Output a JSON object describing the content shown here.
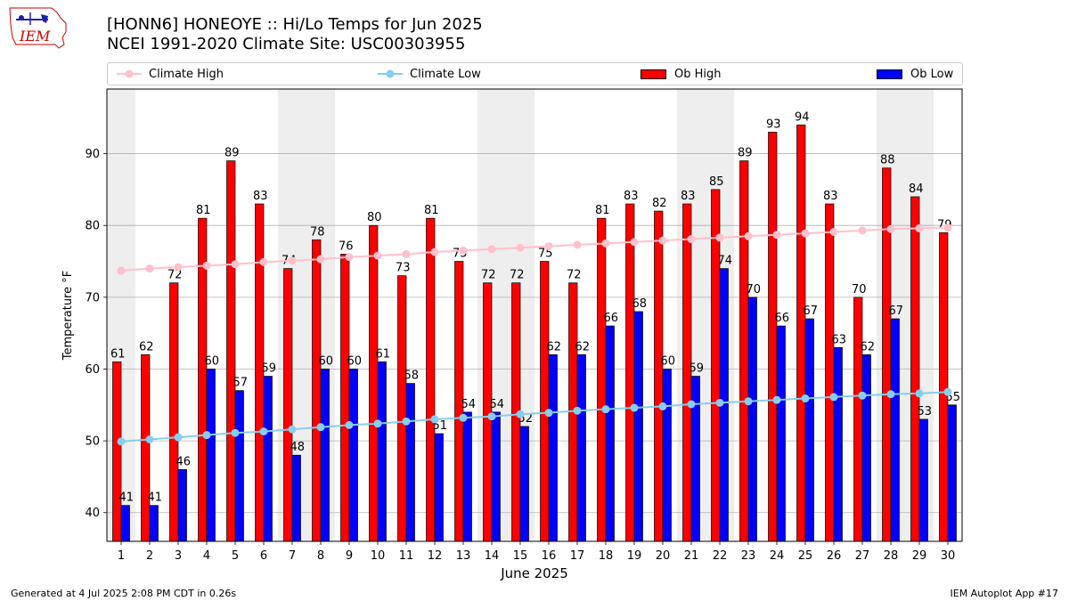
{
  "header": {
    "title_line1": "[HONN6] HONEOYE :: Hi/Lo Temps for Jun 2025",
    "title_line2": "NCEI 1991-2020 Climate Site: USC00303955",
    "logo_text": "IEM"
  },
  "legend": {
    "climate_high": "Climate High",
    "climate_low": "Climate Low",
    "ob_high": "Ob High",
    "ob_low": "Ob Low"
  },
  "colors": {
    "ob_high": "#ff0000",
    "ob_low": "#0000ff",
    "climate_high": "#ffc0cb",
    "climate_low": "#87ceeb",
    "weekend_shade": "#eeeeee",
    "grid": "#b0b0b0"
  },
  "footer": {
    "left": "Generated at 4 Jul 2025 2:08 PM CDT in 0.26s",
    "right": "IEM Autoplot App #17"
  },
  "chart_data": {
    "type": "bar",
    "xlabel": "June 2025",
    "ylabel": "Temperature °F",
    "ylim": [
      36,
      99
    ],
    "yticks": [
      40,
      50,
      60,
      70,
      80,
      90
    ],
    "grid": "horizontal",
    "legend_position": "top",
    "categories": [
      1,
      2,
      3,
      4,
      5,
      6,
      7,
      8,
      9,
      10,
      11,
      12,
      13,
      14,
      15,
      16,
      17,
      18,
      19,
      20,
      21,
      22,
      23,
      24,
      25,
      26,
      27,
      28,
      29,
      30
    ],
    "shaded_days": [
      1,
      7,
      8,
      14,
      15,
      21,
      22,
      28,
      29
    ],
    "series": [
      {
        "name": "Ob High",
        "kind": "bar",
        "values": [
          61,
          62,
          72,
          81,
          89,
          83,
          74,
          78,
          76,
          80,
          73,
          81,
          75,
          72,
          72,
          75,
          72,
          81,
          83,
          82,
          83,
          85,
          89,
          93,
          94,
          83,
          70,
          88,
          84,
          79
        ]
      },
      {
        "name": "Ob Low",
        "kind": "bar",
        "values": [
          41,
          41,
          46,
          60,
          57,
          59,
          48,
          60,
          60,
          61,
          58,
          51,
          54,
          54,
          52,
          62,
          62,
          66,
          68,
          60,
          59,
          74,
          70,
          66,
          67,
          63,
          62,
          67,
          53,
          55
        ]
      },
      {
        "name": "Climate High",
        "kind": "line",
        "values": [
          73.7,
          74.0,
          74.2,
          74.4,
          74.6,
          74.9,
          75.1,
          75.3,
          75.6,
          75.8,
          76.0,
          76.3,
          76.5,
          76.7,
          76.9,
          77.1,
          77.3,
          77.5,
          77.7,
          77.9,
          78.1,
          78.3,
          78.5,
          78.7,
          78.9,
          79.1,
          79.3,
          79.5,
          79.6,
          79.7
        ]
      },
      {
        "name": "Climate Low",
        "kind": "line",
        "values": [
          49.9,
          50.2,
          50.5,
          50.8,
          51.1,
          51.3,
          51.6,
          51.9,
          52.2,
          52.4,
          52.7,
          53.0,
          53.2,
          53.4,
          53.7,
          53.9,
          54.2,
          54.4,
          54.6,
          54.8,
          55.1,
          55.3,
          55.5,
          55.7,
          55.9,
          56.1,
          56.3,
          56.5,
          56.6,
          56.8
        ]
      }
    ]
  }
}
